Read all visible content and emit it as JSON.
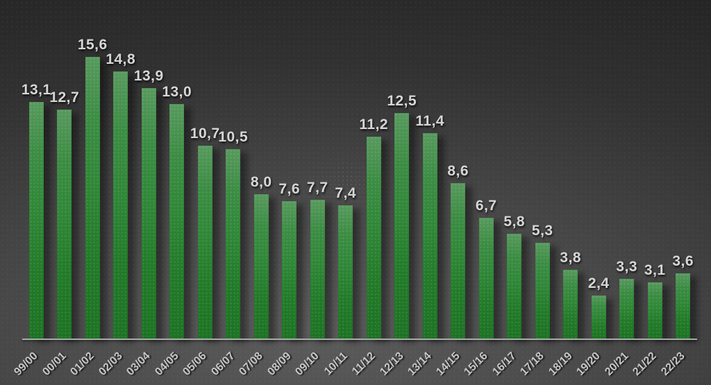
{
  "chart_data": {
    "type": "bar",
    "categories": [
      "99/00",
      "00/01",
      "01/02",
      "02/03",
      "03/04",
      "04/05",
      "05/06",
      "06/07",
      "07/08",
      "08/09",
      "09/10",
      "10/11",
      "11/12",
      "12/13",
      "13/14",
      "14/15",
      "15/16",
      "16/17",
      "17/18",
      "18/19",
      "19/20",
      "20/21",
      "21/22",
      "22/23"
    ],
    "values": [
      13.1,
      12.7,
      15.6,
      14.8,
      13.9,
      13.0,
      10.7,
      10.5,
      8.0,
      7.6,
      7.7,
      7.4,
      11.2,
      12.5,
      11.4,
      8.6,
      6.7,
      5.8,
      5.3,
      3.8,
      2.4,
      3.3,
      3.1,
      3.6
    ],
    "value_labels": [
      "13,1",
      "12,7",
      "15,6",
      "14,8",
      "13,9",
      "13,0",
      "10,7",
      "10,5",
      "8,0",
      "7,6",
      "7,7",
      "7,4",
      "11,2",
      "12,5",
      "11,4",
      "8,6",
      "6,7",
      "5,8",
      "5,3",
      "3,8",
      "2,4",
      "3,3",
      "3,1",
      "3,6"
    ],
    "title": "",
    "xlabel": "",
    "ylabel": "",
    "ylim": [
      0,
      16
    ],
    "grid": false,
    "legend": "none",
    "decimal_separator": ",",
    "bar_color_top": "#57995d",
    "bar_color_bottom": "#1c7223",
    "value_label_color": "#d6d6d6",
    "axis_label_color": "#c6c6c6",
    "axis_line_color": "#a9ada9",
    "background_center_color": "#5c5c5c",
    "background_edge_color": "#242424"
  }
}
